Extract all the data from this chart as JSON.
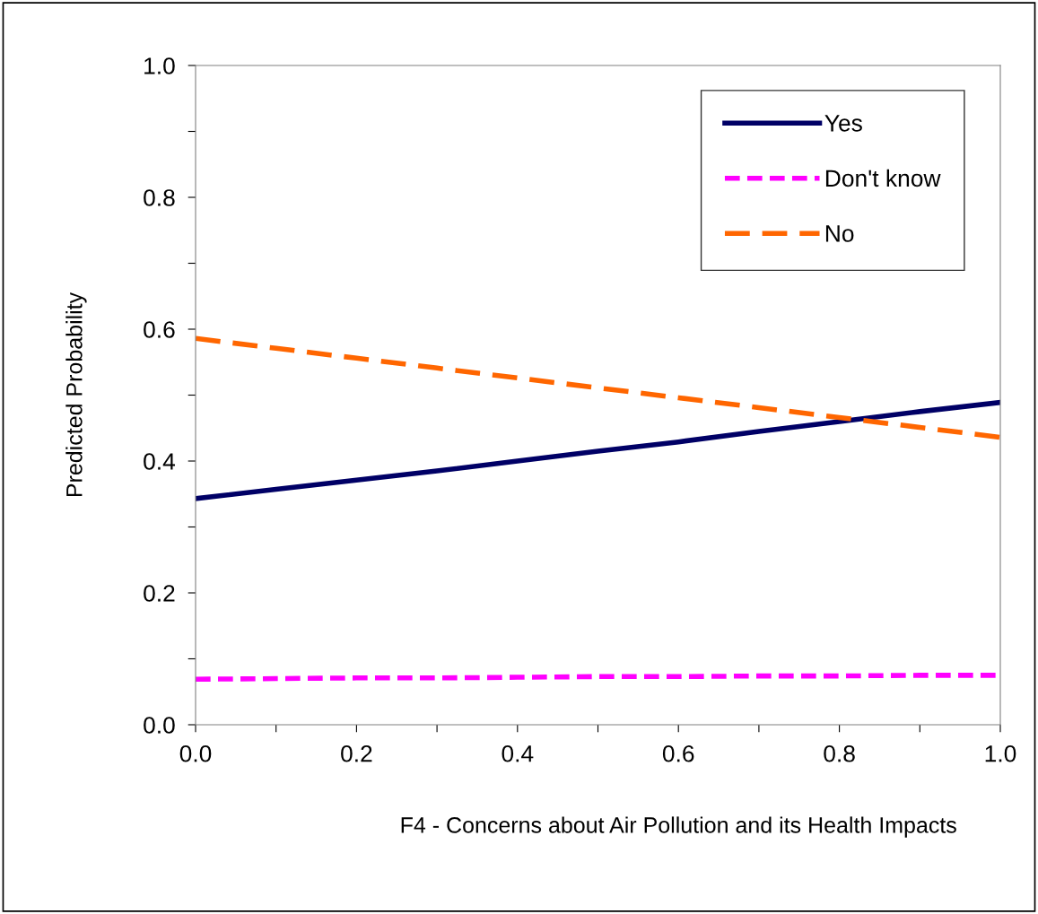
{
  "chart_data": {
    "type": "line",
    "xlabel": "F4 - Concerns about Air Pollution and its Health Impacts",
    "ylabel": "Predicted Probability",
    "x": [
      0,
      0.1,
      0.2,
      0.3,
      0.4,
      0.5,
      0.6,
      0.7,
      0.8,
      0.9,
      1.0
    ],
    "series": [
      {
        "name": "Yes",
        "color": "#000066",
        "line_style": "solid",
        "values": [
          0.343,
          0.357,
          0.371,
          0.385,
          0.4,
          0.415,
          0.429,
          0.445,
          0.46,
          0.475,
          0.489
        ]
      },
      {
        "name": "Don't know",
        "color": "#ff00ff",
        "line_style": "dashed",
        "values": [
          0.069,
          0.07,
          0.071,
          0.071,
          0.072,
          0.073,
          0.073,
          0.074,
          0.074,
          0.075,
          0.075
        ]
      },
      {
        "name": "No",
        "color": "#ff6600",
        "line_style": "dashed",
        "values": [
          0.586,
          0.571,
          0.556,
          0.541,
          0.526,
          0.511,
          0.496,
          0.481,
          0.466,
          0.451,
          0.436
        ]
      }
    ],
    "xlim": [
      0,
      1.0
    ],
    "ylim": [
      0,
      1.0
    ],
    "xticks": [
      {
        "value": 0,
        "label": "0.0"
      },
      {
        "value": 0.1,
        "label": null
      },
      0.2,
      {
        "value": 0.3,
        "label": null
      },
      0.4,
      {
        "value": 0.5,
        "label": null
      },
      0.6,
      {
        "value": 0.7,
        "label": null
      },
      0.8,
      {
        "value": 0.9,
        "label": null
      },
      {
        "value": 1.0,
        "label": "1.0"
      }
    ],
    "yticks": [
      {
        "value": 0,
        "label": "0.0"
      },
      {
        "value": 0.1,
        "label": null
      },
      0.2,
      {
        "value": 0.3,
        "label": null
      },
      0.4,
      {
        "value": 0.5,
        "label": null
      },
      0.6,
      {
        "value": 0.7,
        "label": null
      },
      0.8,
      {
        "value": 0.9,
        "label": null
      },
      {
        "value": 1.0,
        "label": "1.0"
      }
    ],
    "grid": false,
    "legend": "top right",
    "marker": "none"
  }
}
